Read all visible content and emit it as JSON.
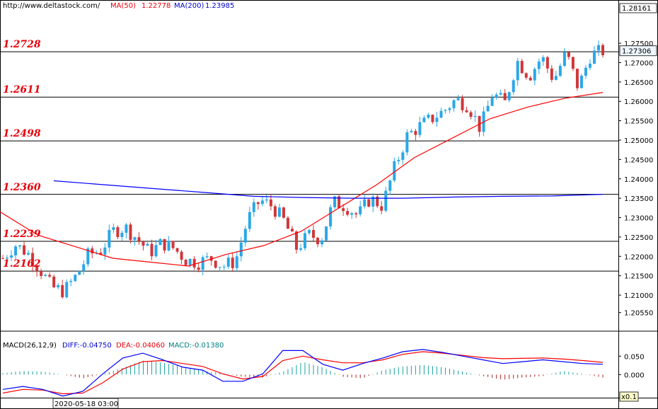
{
  "header": {
    "site": "http://www.deltastock.com/",
    "ma50_label": "MA(50)",
    "ma50_value": "1.22778",
    "ma200_label": "MA(200)",
    "ma200_value": "1.23985"
  },
  "macd_header": {
    "label": "MACD(26,12,9)",
    "diff": "DIFF:-0.04750",
    "dea": "DEA:-0.04060",
    "macd": "MACD:-0.01380"
  },
  "price_box": {
    "top": "1.28161",
    "current": "1.27306"
  },
  "macd_box": {
    "scale": "x0.1"
  },
  "date_label": "2020-05-18 03:00",
  "chart_data": [
    {
      "type": "candlestick",
      "y_ticks": [
        1.2055,
        1.21,
        1.215,
        1.22,
        1.225,
        1.23,
        1.235,
        1.24,
        1.245,
        1.25,
        1.255,
        1.26,
        1.265,
        1.27,
        1.275
      ],
      "y_tick_labels": [
        "1.20550",
        "1.21000",
        "1.21500",
        "1.22000",
        "1.22500",
        "1.23000",
        "1.23500",
        "1.24000",
        "1.24500",
        "1.25000",
        "1.25500",
        "1.26000",
        "1.26500",
        "1.27000",
        "1.27500"
      ],
      "ylim": [
        1.2007,
        1.2825
      ],
      "levels": [
        {
          "value": 1.2728,
          "label": "1.2728"
        },
        {
          "value": 1.2611,
          "label": "1.2611"
        },
        {
          "value": 1.2498,
          "label": "1.2498"
        },
        {
          "value": 1.236,
          "label": "1.2360"
        },
        {
          "value": 1.2239,
          "label": "1.2239"
        },
        {
          "value": 1.2162,
          "label": "1.2162"
        }
      ],
      "close_path": [
        1.2195,
        1.223,
        1.221,
        1.2168,
        1.212,
        1.211,
        1.215,
        1.2205,
        1.2215,
        1.2265,
        1.2275,
        1.2245,
        1.221,
        1.2235,
        1.222,
        1.219,
        1.2185,
        1.2195,
        1.2175,
        1.2188,
        1.2295,
        1.2345,
        1.233,
        1.229,
        1.222,
        1.2255,
        1.2245,
        1.234,
        1.233,
        1.2305,
        1.235,
        1.233,
        1.243,
        1.251,
        1.2535,
        1.2555,
        1.2575,
        1.2605,
        1.259,
        1.253,
        1.262,
        1.2595,
        1.2705,
        1.2665,
        1.2715,
        1.2655,
        1.2725,
        1.2635,
        1.272,
        1.273
      ],
      "series": [
        {
          "name": "MA(50)",
          "color": "#ff0000",
          "values": [
            1.2315,
            1.2255,
            1.2225,
            1.2195,
            1.2185,
            1.2175,
            1.2205,
            1.2228,
            1.2265,
            1.2325,
            1.2385,
            1.2455,
            1.2505,
            1.2555,
            1.2585,
            1.2608,
            1.2623
          ]
        },
        {
          "name": "MA(200)",
          "color": "#0000ff",
          "values": [
            1.2395,
            1.2385,
            1.2375,
            1.2365,
            1.2355,
            1.2352,
            1.235,
            1.235,
            1.2353,
            1.2355,
            1.2356,
            1.236
          ]
        }
      ]
    },
    {
      "type": "macd",
      "y_ticks": [
        0.05,
        0.0
      ],
      "y_tick_labels": [
        "0.050",
        "0.000"
      ],
      "ylim": [
        -0.0625,
        0.085
      ],
      "diff": [
        -0.04,
        -0.032,
        -0.04,
        -0.058,
        -0.045,
        0.002,
        0.045,
        0.058,
        0.04,
        0.02,
        0.012,
        -0.018,
        -0.018,
        0.002,
        0.065,
        0.065,
        0.028,
        0.012,
        0.03,
        0.045,
        0.062,
        0.068,
        0.06,
        0.05,
        0.04,
        0.03,
        0.035,
        0.04,
        0.035,
        0.03,
        0.028
      ],
      "dea": [
        -0.05,
        -0.04,
        -0.042,
        -0.052,
        -0.05,
        -0.022,
        0.015,
        0.035,
        0.038,
        0.03,
        0.022,
        0.002,
        -0.012,
        -0.005,
        0.038,
        0.05,
        0.04,
        0.032,
        0.032,
        0.04,
        0.055,
        0.062,
        0.058,
        0.052,
        0.046,
        0.043,
        0.044,
        0.045,
        0.042,
        0.038,
        0.033
      ],
      "hist": [
        0.004,
        0.01,
        0.008,
        0.0,
        -0.01,
        0.002,
        0.018,
        0.038,
        0.032,
        0.022,
        0.01,
        0.004,
        -0.006,
        -0.008,
        0.008,
        0.034,
        0.02,
        -0.006,
        -0.01,
        0.012,
        0.022,
        0.026,
        0.02,
        0.008,
        -0.004,
        -0.014,
        -0.008,
        -0.004,
        0.01,
        0.002,
        -0.008
      ]
    }
  ]
}
